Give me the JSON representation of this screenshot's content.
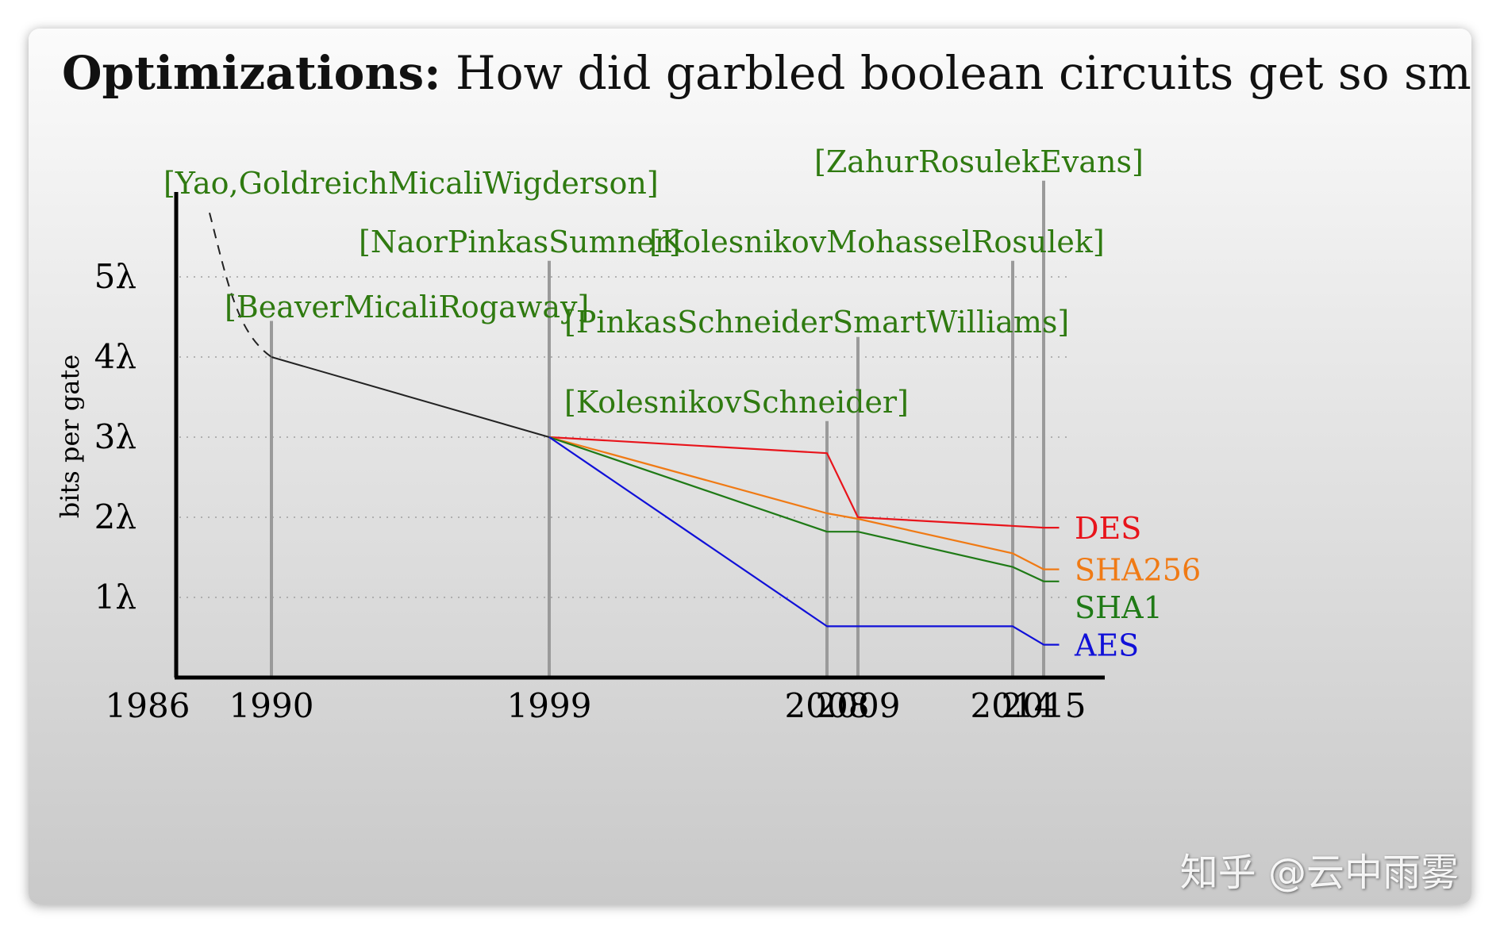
{
  "title": {
    "bold": "Optimizations:",
    "rest": "How did garbled boolean circuits get so small?"
  },
  "watermark": "知乎 @云中雨雾",
  "colors": {
    "DES": "#e8141b",
    "SHA256": "#f07a14",
    "SHA1": "#1f7a16",
    "AES": "#1010d8",
    "baseline": "#222222",
    "citation": "#2f7a10",
    "vline": "#9a9a9a"
  },
  "chart_data": {
    "type": "line",
    "ylabel": "bits per gate",
    "xlabel": "",
    "xlim": [
      1986,
      2016
    ],
    "ylim": [
      0,
      5
    ],
    "x_ticks": [
      "1986",
      "1990",
      "1999",
      "2008",
      "2009",
      "2014",
      "2015"
    ],
    "y_ticks": [
      "1λ",
      "2λ",
      "3λ",
      "4λ",
      "5λ"
    ],
    "grid": "dotted horizontal",
    "events": [
      {
        "year": 1988,
        "label": "[Yao,GoldreichMicaliWigderson]"
      },
      {
        "year": 1990,
        "label": "[BeaverMicaliRogaway]"
      },
      {
        "year": 1999,
        "label": "[NaorPinkasSumner]"
      },
      {
        "year": 2008,
        "label": "[KolesnikovSchneider]"
      },
      {
        "year": 2009,
        "label": "[PinkasSchneiderSmartWilliams]"
      },
      {
        "year": 2014,
        "label": "[KolesnikovMohasselRosulek]"
      },
      {
        "year": 2015,
        "label": "[ZahurRosulekEvans]"
      }
    ],
    "baseline": {
      "name": "",
      "dashed": {
        "x": [
          1988,
          1989,
          1990
        ],
        "y": [
          5.8,
          4.6,
          4.0
        ]
      },
      "solid": {
        "x": [
          1990,
          1999
        ],
        "y": [
          4.0,
          3.0
        ]
      }
    },
    "series": [
      {
        "name": "DES",
        "x": [
          1999,
          2008,
          2009,
          2015,
          2015.5
        ],
        "y": [
          3.0,
          2.8,
          2.0,
          1.87,
          1.87
        ]
      },
      {
        "name": "SHA256",
        "x": [
          1999,
          2008,
          2009,
          2014,
          2015,
          2015.5
        ],
        "y": [
          3.0,
          2.05,
          1.98,
          1.55,
          1.35,
          1.35
        ]
      },
      {
        "name": "SHA1",
        "x": [
          1999,
          2008,
          2009,
          2014,
          2015,
          2015.5
        ],
        "y": [
          3.0,
          1.82,
          1.82,
          1.38,
          1.2,
          1.2
        ]
      },
      {
        "name": "AES",
        "x": [
          1999,
          2008,
          2014,
          2015,
          2015.5
        ],
        "y": [
          3.0,
          0.64,
          0.64,
          0.41,
          0.41
        ]
      }
    ]
  }
}
